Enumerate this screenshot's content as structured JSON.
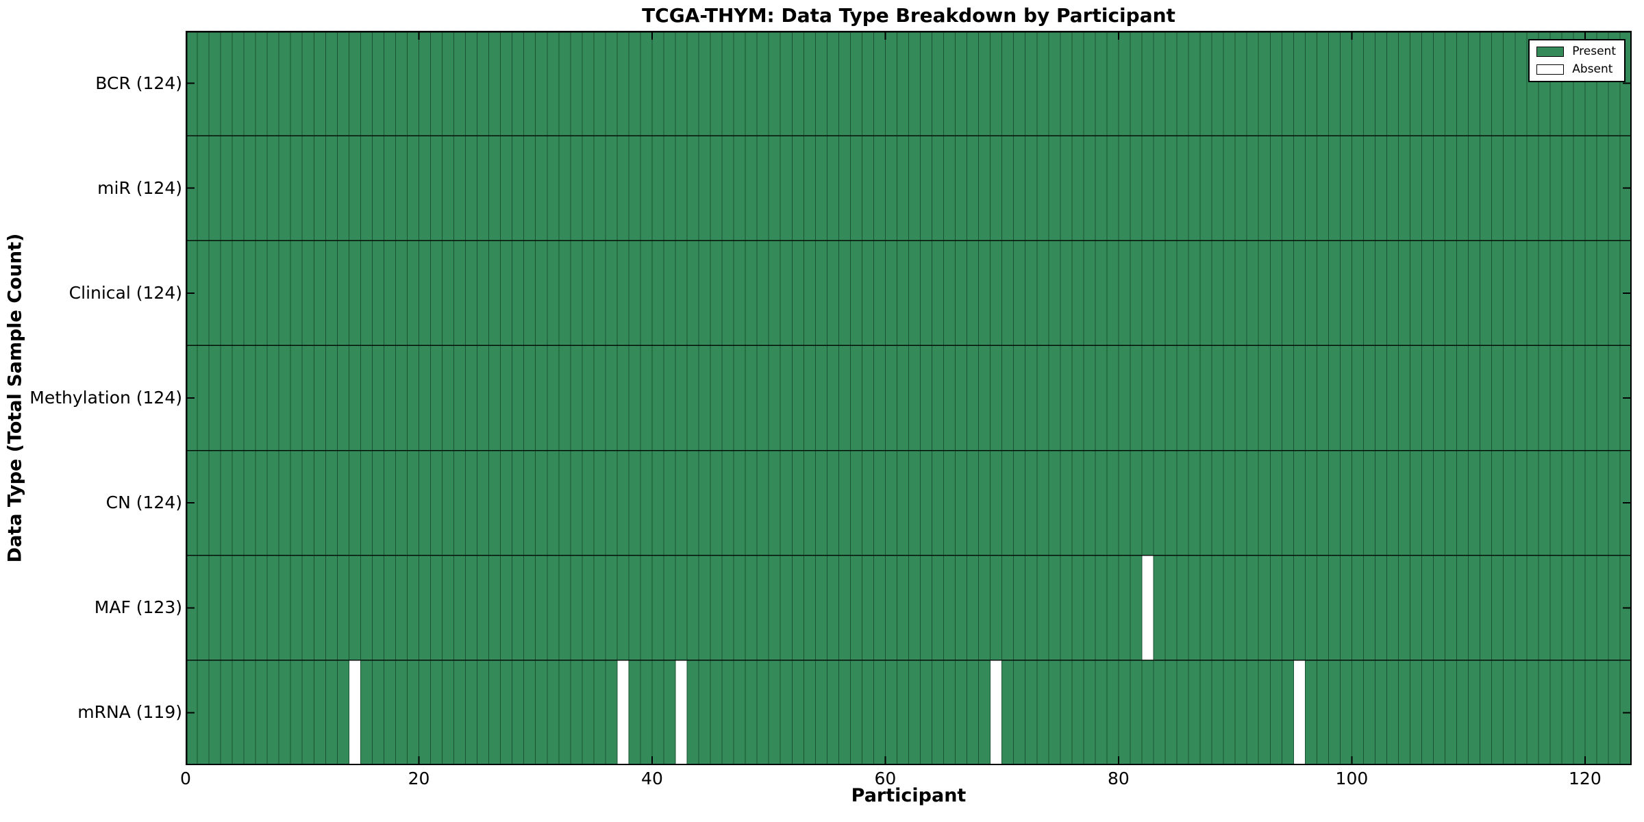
{
  "chart_data": {
    "type": "heatmap",
    "title": "TCGA-THYM: Data Type Breakdown by Participant",
    "xlabel": "Participant",
    "ylabel": "Data Type (Total Sample Count)",
    "xlim": [
      0,
      124
    ],
    "x_ticks": [
      0,
      20,
      40,
      60,
      80,
      100,
      120
    ],
    "n_participants": 124,
    "grid": false,
    "legend_position": "upper right",
    "rows": [
      {
        "label": "BCR (124)",
        "data_type": "BCR",
        "present_count": 124,
        "absent_participants": []
      },
      {
        "label": "miR (124)",
        "data_type": "miR",
        "present_count": 124,
        "absent_participants": []
      },
      {
        "label": "Clinical (124)",
        "data_type": "Clinical",
        "present_count": 124,
        "absent_participants": []
      },
      {
        "label": "Methylation (124)",
        "data_type": "Methylation",
        "present_count": 124,
        "absent_participants": []
      },
      {
        "label": "CN (124)",
        "data_type": "CN",
        "present_count": 124,
        "absent_participants": []
      },
      {
        "label": "MAF (123)",
        "data_type": "MAF",
        "present_count": 123,
        "absent_participants": [
          82
        ]
      },
      {
        "label": "mRNA (119)",
        "data_type": "mRNA",
        "present_count": 119,
        "absent_participants": [
          14,
          37,
          42,
          69,
          95
        ]
      }
    ],
    "legend": [
      {
        "label": "Present",
        "color": "#348a58"
      },
      {
        "label": "Absent",
        "color": "#ffffff"
      }
    ],
    "colors": {
      "present": "#348a58",
      "absent": "#ffffff",
      "cell_edge": "#1c5234",
      "row_divider": "#000000",
      "frame": "#000000",
      "tick": "#000000"
    }
  }
}
